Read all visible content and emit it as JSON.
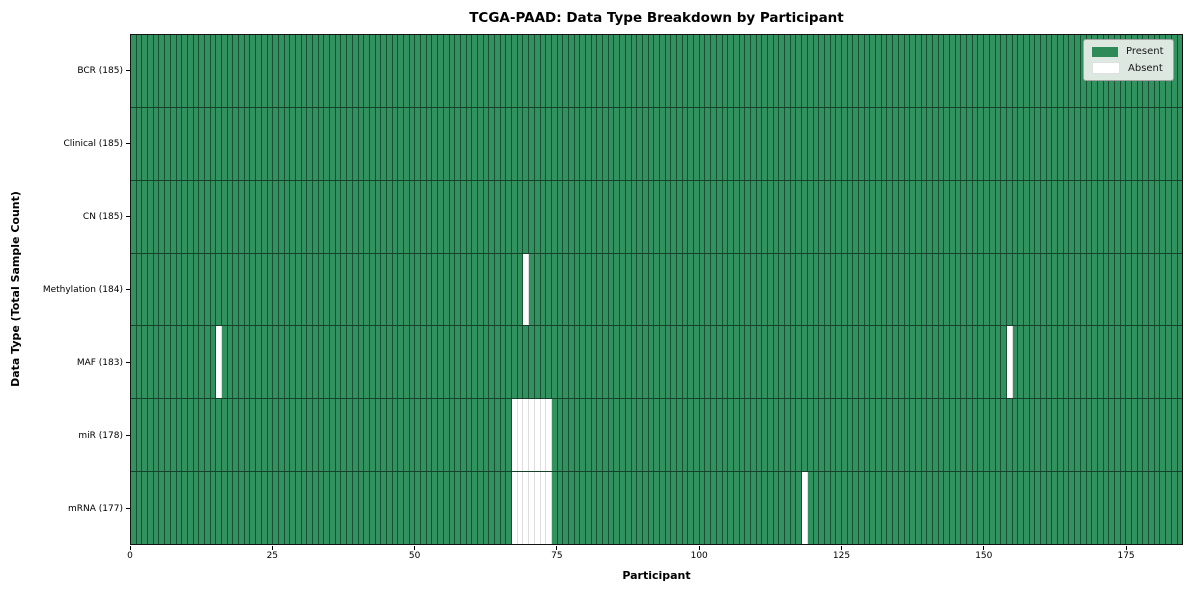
{
  "title": "TCGA-PAAD: Data Type Breakdown by Participant",
  "legend": {
    "present_label": "Present",
    "absent_label": "Absent"
  },
  "chart_data": {
    "type": "heatmap",
    "title": "TCGA-PAAD: Data Type Breakdown by Participant",
    "xlabel": "Participant",
    "ylabel": "Data Type (Total Sample Count)",
    "x_ticks": [
      0,
      25,
      50,
      75,
      100,
      125,
      150,
      175
    ],
    "x_range": [
      0,
      185
    ],
    "n_participants": 185,
    "grid": "off",
    "legend_position": "upper right",
    "legend_entries": [
      {
        "label": "Present",
        "color": "#2e8b57"
      },
      {
        "label": "Absent",
        "color": "#ffffff"
      }
    ],
    "colors": {
      "present": "#31915f",
      "absent": "#ffffff"
    },
    "rows": [
      {
        "label": "BCR (185)",
        "data_type": "BCR",
        "total_samples": 185,
        "absent_participants": []
      },
      {
        "label": "Clinical (185)",
        "data_type": "Clinical",
        "total_samples": 185,
        "absent_participants": []
      },
      {
        "label": "CN (185)",
        "data_type": "CN",
        "total_samples": 185,
        "absent_participants": []
      },
      {
        "label": "Methylation (184)",
        "data_type": "Methylation",
        "total_samples": 184,
        "absent_participants": [
          69
        ]
      },
      {
        "label": "MAF (183)",
        "data_type": "MAF",
        "total_samples": 183,
        "absent_participants": [
          15,
          154
        ]
      },
      {
        "label": "miR (178)",
        "data_type": "miR",
        "total_samples": 178,
        "absent_participants": [
          67,
          68,
          69,
          70,
          71,
          72,
          73
        ]
      },
      {
        "label": "mRNA (177)",
        "data_type": "mRNA",
        "total_samples": 177,
        "absent_participants": [
          67,
          68,
          69,
          70,
          71,
          72,
          73,
          118
        ]
      }
    ]
  }
}
